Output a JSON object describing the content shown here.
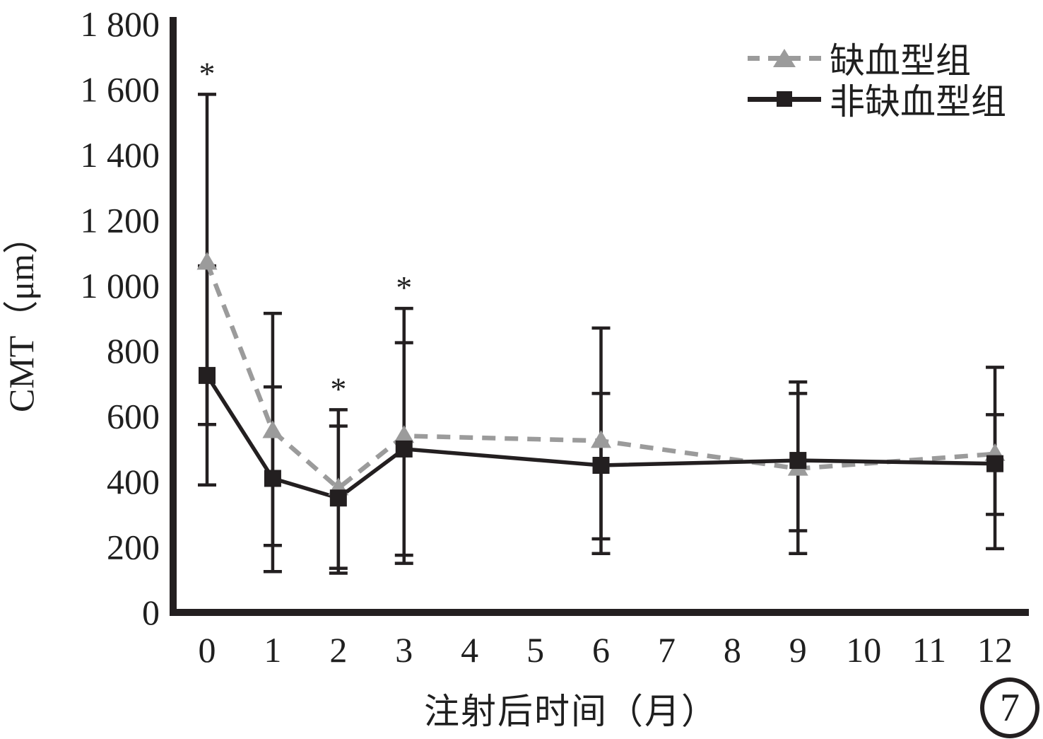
{
  "figure": {
    "y_axis_title": "CMT（μm）",
    "x_axis_title": "注射后时间（月）",
    "figure_number": "7",
    "significance_symbol": "*"
  },
  "colors": {
    "black": "#231f20",
    "gray": "#9b9b9b",
    "background": "#ffffff"
  },
  "chart_data": {
    "type": "line",
    "title": "",
    "xlabel": "注射后时间（月）",
    "ylabel": "CMT（μm）",
    "xlim": [
      0,
      12
    ],
    "ylim": [
      0,
      1800
    ],
    "grid": false,
    "legend_position": "top-right",
    "error_bars": true,
    "x_ticks": [
      0,
      1,
      2,
      3,
      4,
      5,
      6,
      7,
      8,
      9,
      10,
      11,
      12
    ],
    "x_tick_labels": [
      "0",
      "1",
      "2",
      "3",
      "4",
      "5",
      "6",
      "7",
      "8",
      "9",
      "10",
      "11",
      "12"
    ],
    "y_ticks": [
      0,
      200,
      400,
      600,
      800,
      1000,
      1200,
      1400,
      1600,
      1800
    ],
    "y_tick_labels": [
      "0",
      "200",
      "400",
      "600",
      "800",
      "1 000",
      "1 200",
      "1 400",
      "1 600",
      "1 800"
    ],
    "series": [
      {
        "id": "ischemic",
        "name": "缺血型组",
        "marker": "triangle",
        "line_style": "dashed",
        "color_key": "gray",
        "x": [
          0,
          1,
          2,
          3,
          6,
          9,
          12
        ],
        "y": [
          1070,
          555,
          380,
          540,
          525,
          440,
          485
        ],
        "error_low": [
          575,
          205,
          135,
          150,
          180,
          180,
          195
        ],
        "error_high": [
          1585,
          915,
          620,
          930,
          870,
          705,
          750
        ],
        "significant_months": [
          0,
          2,
          3
        ]
      },
      {
        "id": "non_ischemic",
        "name": "非缺血型组",
        "marker": "square",
        "line_style": "solid",
        "color_key": "black",
        "x": [
          0,
          1,
          2,
          3,
          6,
          9,
          12
        ],
        "y": [
          725,
          410,
          350,
          500,
          450,
          465,
          455
        ],
        "error_low": [
          390,
          125,
          120,
          175,
          225,
          250,
          300
        ],
        "error_high": [
          1060,
          690,
          570,
          825,
          670,
          670,
          605
        ],
        "significant_months": []
      }
    ]
  }
}
